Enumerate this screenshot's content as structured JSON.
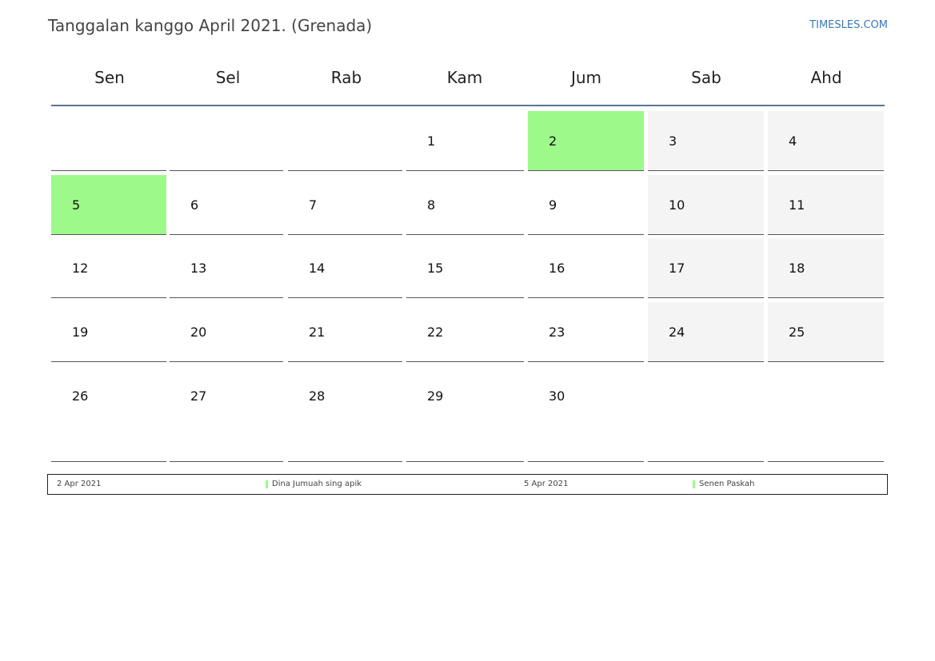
{
  "header": {
    "title": "Tanggalan kanggo April 2021. (Grenada)",
    "brand": "TIMESLES.COM"
  },
  "colors": {
    "holiday": "#9dfa8a",
    "weekend": "#f4f4f4",
    "rule": "#5b7493",
    "brand": "#3b78b5"
  },
  "calendar": {
    "weekdays": [
      "Sen",
      "Sel",
      "Rab",
      "Kam",
      "Jum",
      "Sab",
      "Ahd"
    ],
    "weeks": [
      [
        {
          "day": ""
        },
        {
          "day": ""
        },
        {
          "day": ""
        },
        {
          "day": "1"
        },
        {
          "day": "2",
          "holiday": true
        },
        {
          "day": "3",
          "weekend": true
        },
        {
          "day": "4",
          "weekend": true
        }
      ],
      [
        {
          "day": "5",
          "holiday": true
        },
        {
          "day": "6"
        },
        {
          "day": "7"
        },
        {
          "day": "8"
        },
        {
          "day": "9"
        },
        {
          "day": "10",
          "weekend": true
        },
        {
          "day": "11",
          "weekend": true
        }
      ],
      [
        {
          "day": "12"
        },
        {
          "day": "13"
        },
        {
          "day": "14"
        },
        {
          "day": "15"
        },
        {
          "day": "16"
        },
        {
          "day": "17",
          "weekend": true
        },
        {
          "day": "18",
          "weekend": true
        }
      ],
      [
        {
          "day": "19"
        },
        {
          "day": "20"
        },
        {
          "day": "21"
        },
        {
          "day": "22"
        },
        {
          "day": "23"
        },
        {
          "day": "24",
          "weekend": true
        },
        {
          "day": "25",
          "weekend": true
        }
      ],
      [
        {
          "day": "26"
        },
        {
          "day": "27"
        },
        {
          "day": "28"
        },
        {
          "day": "29"
        },
        {
          "day": "30"
        },
        {
          "day": ""
        },
        {
          "day": ""
        }
      ]
    ]
  },
  "legend": [
    {
      "date": "2 Apr 2021",
      "name": "Dina Jumuah sing apik"
    },
    {
      "date": "5 Apr 2021",
      "name": "Senen Paskah"
    }
  ]
}
